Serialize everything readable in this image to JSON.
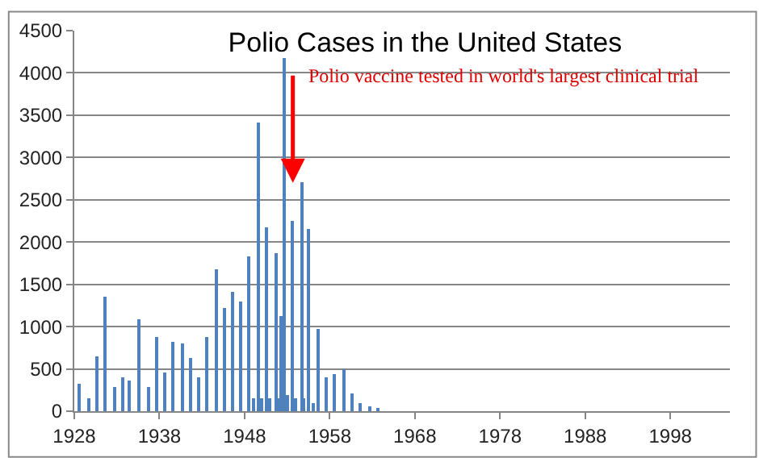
{
  "chart_data": {
    "type": "bar",
    "title": "Polio Cases in the United States",
    "x": [
      "1928-09",
      "1929-10",
      "1930-10",
      "1931-09",
      "1932-09",
      "1933-09",
      "1934-07",
      "1935-08",
      "1936-09",
      "1937-10",
      "1938-09",
      "1939-08",
      "1940-09",
      "1941-08",
      "1942-09",
      "1943-08",
      "1944-09",
      "1945-08",
      "1946-08",
      "1947-08",
      "1948-08",
      "1949-01",
      "1949-08",
      "1950-01",
      "1950-09",
      "1951-01",
      "1951-09",
      "1952-01",
      "1952-05",
      "1952-09",
      "1953-01",
      "1953-09",
      "1954-01",
      "1954-09",
      "1955-01",
      "1955-08",
      "1956-01",
      "1956-09",
      "1957-08",
      "1958-08",
      "1959-09",
      "1960-09",
      "1961-09",
      "1962-09",
      "1963-09"
    ],
    "values": [
      330,
      150,
      650,
      1360,
      280,
      400,
      360,
      1080,
      280,
      870,
      460,
      820,
      800,
      630,
      400,
      870,
      1680,
      1220,
      1420,
      1290,
      1830,
      150,
      3420,
      150,
      2170,
      150,
      1870,
      150,
      1120,
      4170,
      200,
      2250,
      150,
      2700,
      150,
      2150,
      100,
      970,
      400,
      440,
      500,
      210,
      100,
      60,
      30
    ],
    "color": "#4f81bd",
    "xlim": [
      "1928",
      "2005"
    ],
    "xticks": [
      {
        "value": "1928",
        "label": "1928"
      },
      {
        "value": "1938",
        "label": "1938"
      },
      {
        "value": "1948",
        "label": "1948"
      },
      {
        "value": "1958",
        "label": "1958"
      },
      {
        "value": "1968",
        "label": "1968"
      },
      {
        "value": "1978",
        "label": "1978"
      },
      {
        "value": "1988",
        "label": "1988"
      },
      {
        "value": "1998",
        "label": "1998"
      }
    ],
    "ylim": [
      0,
      4500
    ],
    "yticks": [
      0,
      500,
      1000,
      1500,
      2000,
      2500,
      3000,
      3500,
      4000,
      4500
    ],
    "grid": "y",
    "annotations": [
      {
        "text": "Polio vaccine tested in world's largest clinical trial",
        "x": "1953-09",
        "y": 2700
      }
    ]
  }
}
